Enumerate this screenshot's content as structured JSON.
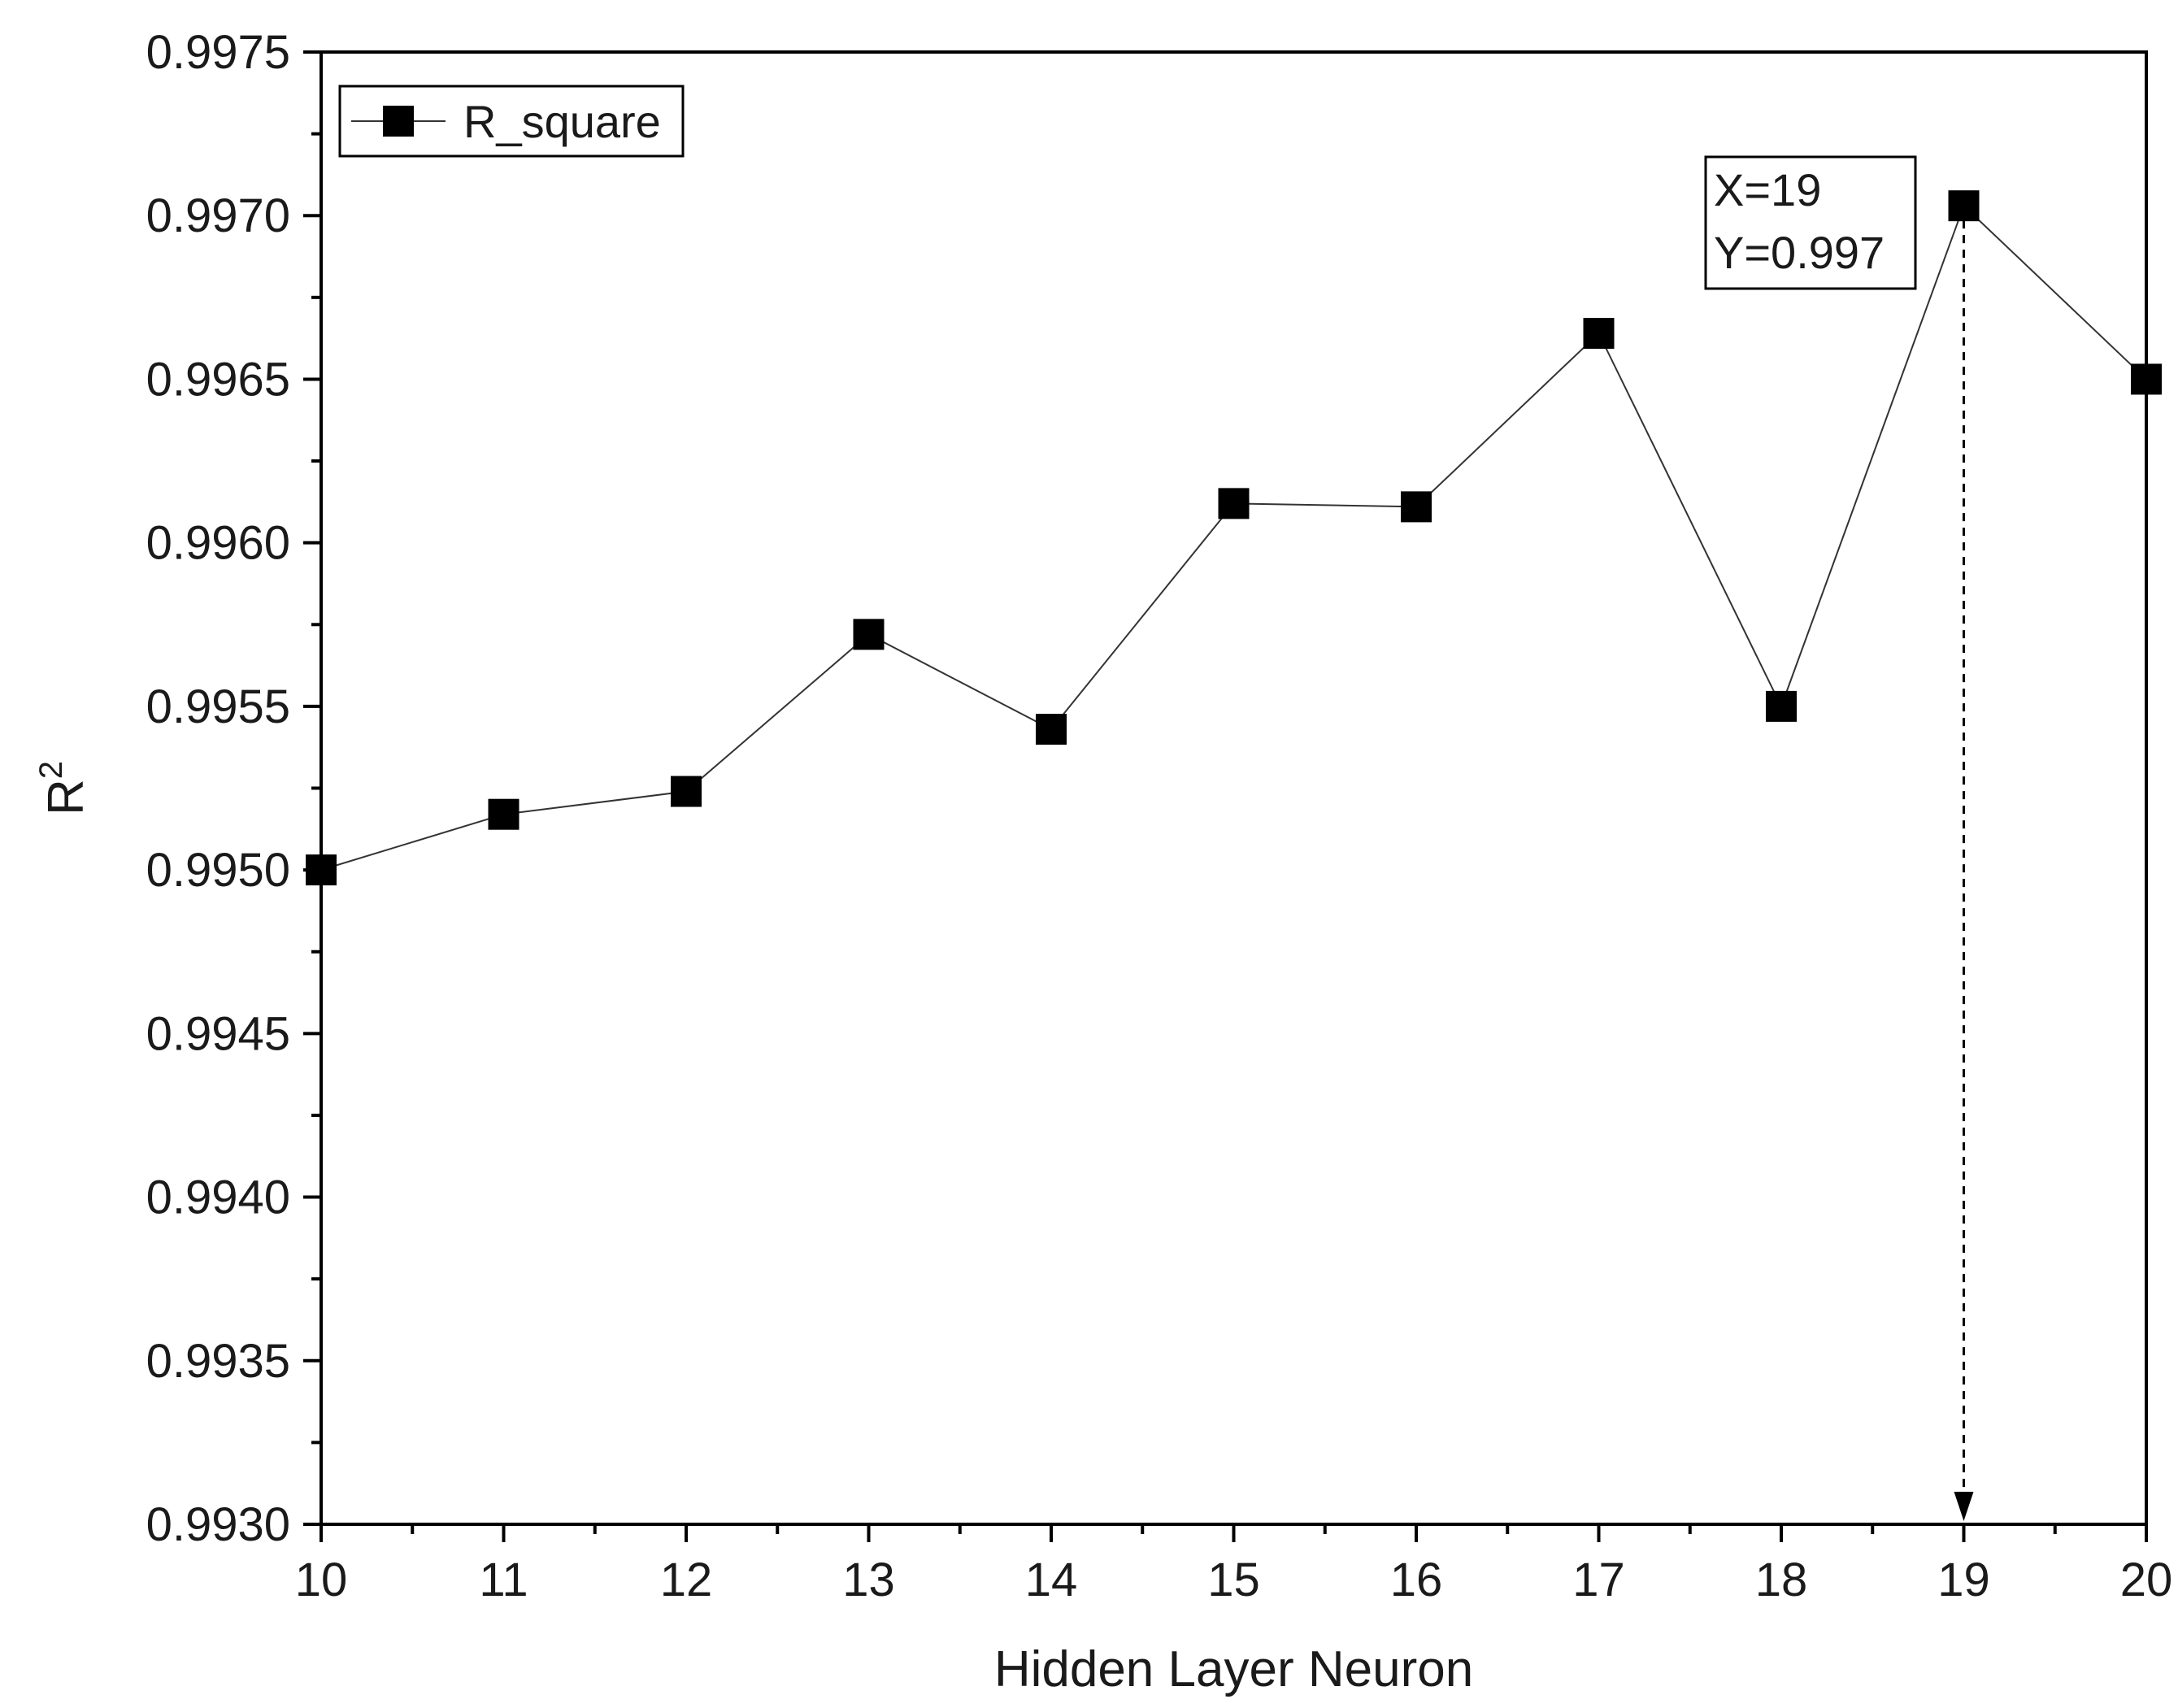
{
  "chart_data": {
    "type": "line",
    "title": "",
    "xlabel": "Hidden Layer Neuron",
    "ylabel_base": "R",
    "ylabel_sup": "2",
    "xlim": [
      10,
      20
    ],
    "ylim": [
      0.993,
      0.9975
    ],
    "x_major_ticks": [
      10,
      11,
      12,
      13,
      14,
      15,
      16,
      17,
      18,
      19,
      20
    ],
    "x_tick_labels": [
      "10",
      "11",
      "12",
      "13",
      "14",
      "15",
      "16",
      "17",
      "18",
      "19",
      "20"
    ],
    "y_major_ticks": [
      0.993,
      0.9935,
      0.994,
      0.9945,
      0.995,
      0.9955,
      0.996,
      0.9965,
      0.997,
      0.9975
    ],
    "y_tick_labels": [
      "0.9930",
      "0.9935",
      "0.9940",
      "0.9945",
      "0.9950",
      "0.9955",
      "0.9960",
      "0.9965",
      "0.9970",
      "0.9975"
    ],
    "grid": false,
    "legend_position": "top-left",
    "series": [
      {
        "name": "R_square",
        "marker": "square",
        "x": [
          10,
          11,
          12,
          13,
          14,
          15,
          16,
          17,
          18,
          19,
          20
        ],
        "values": [
          0.995,
          0.99517,
          0.99524,
          0.99572,
          0.99543,
          0.99612,
          0.99611,
          0.99664,
          0.9955,
          0.99703,
          0.9965
        ]
      }
    ],
    "annotation": {
      "line1": "X=19",
      "line2": "Y=0.997",
      "x": 19,
      "y": 0.99703
    }
  },
  "colors": {
    "axis": "#000000",
    "series": "#000000",
    "connector": "#333333",
    "background": "#ffffff"
  }
}
